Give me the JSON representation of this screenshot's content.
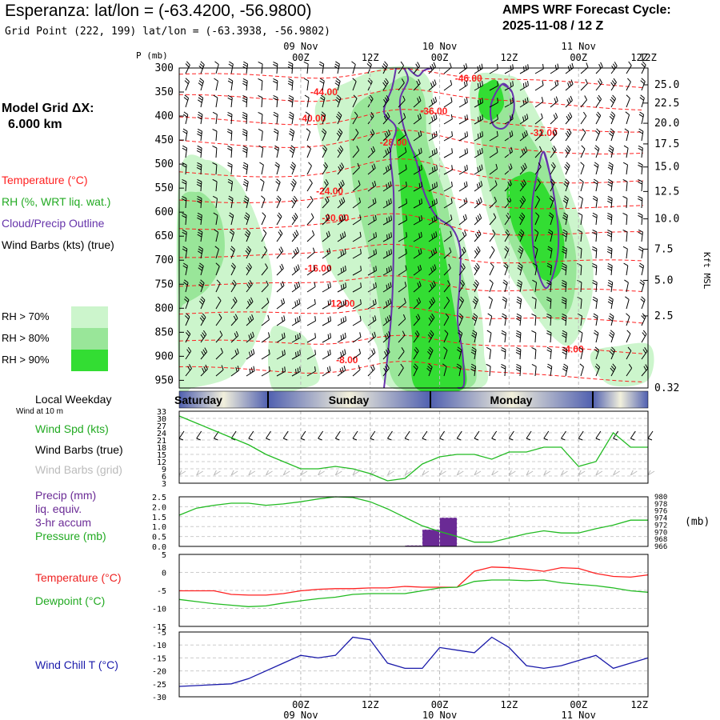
{
  "header": {
    "title": "Esperanza:  lat/lon = (-63.4200, -56.9800)",
    "subtitle": "Grid Point (222, 199) lat/lon = (-63.3938, -56.9802)",
    "cycle_line1": "AMPS WRF Forecast Cycle:",
    "cycle_line2": "2025-11-08 / 12  Z",
    "grid_dx_line1": "Model Grid ΔX:",
    "grid_dx_line2": "6.000 km"
  },
  "legend": {
    "temperature": "Temperature (°C)",
    "rh": "RH (%, WRT liq. wat.)",
    "cloud": "Cloud/Precip Outline",
    "barbs": "Wind Barbs (kts) (true)",
    "rh70": "RH > 70%",
    "rh80": "RH > 80%",
    "rh90": "RH > 90%"
  },
  "colors": {
    "temperature": "#ff2020",
    "rh70": "#ccf5cc",
    "rh80": "#99e699",
    "rh90": "#33dd33",
    "cloud": "#6633aa",
    "wind": "#22bb22",
    "precip": "#6a2a95",
    "chill": "#1a1aaa"
  },
  "time_axis": {
    "top_date_labels": [
      "09 Nov",
      "10 Nov",
      "11 Nov"
    ],
    "bottom_date_labels": [
      "09 Nov",
      "10 Nov",
      "11 Nov"
    ],
    "hour_labels": [
      "00Z",
      "12Z",
      "00Z",
      "12Z",
      "00Z",
      "12Z"
    ],
    "hours": [
      12,
      24,
      36,
      48,
      60,
      72
    ],
    "range": [
      -9,
      72
    ]
  },
  "weekday": {
    "title": "Local Weekday",
    "subtitle": "Wind at 10 m",
    "days": [
      "Saturday",
      "Sunday",
      "Monday"
    ]
  },
  "chart_data": [
    {
      "type": "contour",
      "name": "cross-section",
      "y_label_left": "P (mb)",
      "y_label_right": "Kft MSL",
      "pressure_levels": [
        300,
        350,
        400,
        450,
        500,
        550,
        600,
        650,
        700,
        750,
        800,
        850,
        900,
        950
      ],
      "height_labels": [
        {
          "label": "25.0",
          "p": 335
        },
        {
          "label": "22.5",
          "p": 373
        },
        {
          "label": "20.0",
          "p": 415
        },
        {
          "label": "17.5",
          "p": 458
        },
        {
          "label": "15.0",
          "p": 506
        },
        {
          "label": "12.5",
          "p": 557
        },
        {
          "label": "10.0",
          "p": 614
        },
        {
          "label": "7.5",
          "p": 677
        },
        {
          "label": "5.0",
          "p": 742
        },
        {
          "label": "2.5",
          "p": 816
        },
        {
          "label": "0.32",
          "p": 966
        }
      ],
      "temperature_labels": [
        {
          "label": "-44.00",
          "hour": 16,
          "p": 350
        },
        {
          "label": "-40.00",
          "hour": 14,
          "p": 405
        },
        {
          "label": "-36.00",
          "hour": 35,
          "p": 390
        },
        {
          "label": "-32.00",
          "hour": 54,
          "p": 435
        },
        {
          "label": "-28.00",
          "hour": 28,
          "p": 455
        },
        {
          "label": "-24.00",
          "hour": 17,
          "p": 556
        },
        {
          "label": "-20.00",
          "hour": 18,
          "p": 612
        },
        {
          "label": "-16.00",
          "hour": 15,
          "p": 717
        },
        {
          "label": "-12.00",
          "hour": 19,
          "p": 790
        },
        {
          "label": "-8.00",
          "hour": 20,
          "p": 908
        },
        {
          "label": "-46.00",
          "hour": 41,
          "p": 322
        },
        {
          "label": "-4.00",
          "hour": 59,
          "p": 885
        }
      ]
    },
    {
      "type": "line",
      "name": "wind-speed",
      "title": "Wind Spd (kts)",
      "barbs_true": "Wind Barbs (true)",
      "barbs_grid": "Wind Barbs (grid)",
      "y_ticks": [
        3,
        6,
        9,
        12,
        15,
        18,
        21,
        24,
        27,
        30,
        33
      ],
      "ylim": [
        3,
        33
      ],
      "x": [
        -9,
        -6,
        -3,
        0,
        3,
        6,
        9,
        12,
        15,
        18,
        21,
        24,
        27,
        30,
        33,
        36,
        39,
        42,
        45,
        48,
        51,
        54,
        57,
        60,
        63,
        66,
        69,
        72
      ],
      "values": [
        31,
        28,
        25,
        22,
        19,
        15,
        12,
        9,
        9,
        10,
        9,
        7,
        4,
        5,
        11,
        14,
        15,
        15,
        13,
        16,
        16,
        18,
        18,
        10,
        12,
        24,
        18,
        18
      ]
    },
    {
      "type": "bar+line",
      "name": "precip-pressure",
      "precip_title": [
        "Precip (mm)",
        "liq. equiv.",
        "3-hr accum"
      ],
      "pressure_title": "Pressure (mb)",
      "right_unit": "(mb)",
      "precip_ticks": [
        "0.0",
        "0.5",
        "1.0",
        "1.5",
        "2.0",
        "2.5"
      ],
      "precip_ylim": [
        0,
        2.5
      ],
      "pressure_ticks": [
        "980",
        "978",
        "976",
        "974",
        "972",
        "970",
        "968",
        "966"
      ],
      "pressure_ylim": [
        966,
        980
      ],
      "precip_bars": [
        {
          "start": 30,
          "end": 33,
          "value": 0.05
        },
        {
          "start": 33,
          "end": 36,
          "value": 0.85
        },
        {
          "start": 36,
          "end": 39,
          "value": 1.45
        }
      ],
      "pressure_x": [
        -9,
        -6,
        -3,
        0,
        3,
        6,
        9,
        12,
        15,
        18,
        21,
        24,
        27,
        30,
        33,
        36,
        39,
        42,
        45,
        48,
        51,
        54,
        57,
        60,
        63,
        66,
        69,
        72
      ],
      "pressure_values": [
        974.8,
        976.8,
        977.6,
        978.2,
        978.2,
        977.6,
        978.0,
        978.6,
        979.4,
        980.0,
        979.8,
        978.6,
        976.6,
        974.2,
        971.8,
        970.2,
        968.8,
        967.2,
        967.2,
        968.4,
        969.6,
        970.4,
        969.8,
        969.8,
        971.0,
        972.0,
        973.4,
        973.4
      ]
    },
    {
      "type": "line",
      "name": "temperature-dewpoint",
      "series_titles": [
        "Temperature (°C)",
        "Dewpoint (°C)"
      ],
      "y_ticks": [
        "5",
        "0",
        "-5",
        "-10",
        "-15"
      ],
      "ylim": [
        -15,
        5
      ],
      "x": [
        -9,
        -6,
        -3,
        0,
        3,
        6,
        9,
        12,
        15,
        18,
        21,
        24,
        27,
        30,
        33,
        36,
        39,
        42,
        45,
        48,
        51,
        54,
        57,
        60,
        63,
        66,
        69,
        72
      ],
      "series": [
        {
          "name": "Temperature",
          "values": [
            -5.1,
            -5.1,
            -5.1,
            -6.1,
            -6.3,
            -6.3,
            -5.9,
            -5.1,
            -4.7,
            -4.5,
            -4.5,
            -4.3,
            -4.3,
            -3.9,
            -4.1,
            -4.1,
            -4.1,
            0.3,
            1.5,
            1.3,
            0.9,
            0.3,
            1.3,
            1.1,
            -0.3,
            -1.1,
            -1.3,
            -0.7
          ]
        },
        {
          "name": "Dewpoint",
          "values": [
            -7.5,
            -8.1,
            -8.7,
            -9.1,
            -9.5,
            -9.3,
            -8.5,
            -7.9,
            -7.3,
            -6.9,
            -6.1,
            -5.9,
            -5.9,
            -5.9,
            -5.1,
            -4.3,
            -4.1,
            -2.5,
            -2.1,
            -2.1,
            -2.3,
            -2.1,
            -2.9,
            -3.3,
            -3.7,
            -4.3,
            -5.1,
            -5.5
          ]
        }
      ]
    },
    {
      "type": "line",
      "name": "wind-chill",
      "title": "Wind Chill T (°C)",
      "y_ticks": [
        "-5",
        "-10",
        "-15",
        "-20",
        "-25",
        "-30"
      ],
      "ylim": [
        -30,
        -5
      ],
      "x": [
        -9,
        0,
        3,
        9,
        12,
        15,
        18,
        21,
        24,
        27,
        30,
        33,
        36,
        39,
        42,
        45,
        48,
        51,
        54,
        57,
        60,
        63,
        66,
        69,
        72
      ],
      "values": [
        -26,
        -25,
        -23,
        -17,
        -14,
        -15,
        -14,
        -7,
        -8,
        -17,
        -19,
        -19,
        -11,
        -12,
        -13,
        -7,
        -11,
        -18,
        -19,
        -18,
        -16,
        -14,
        -19,
        -17,
        -15
      ]
    }
  ]
}
